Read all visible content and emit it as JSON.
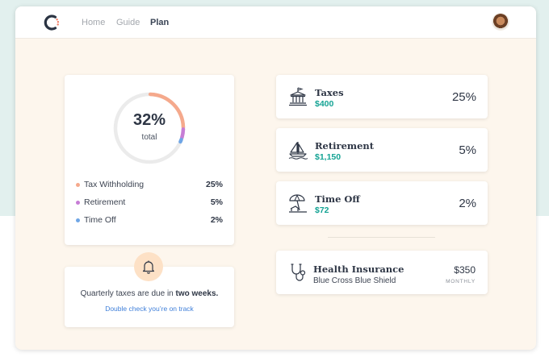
{
  "nav": {
    "links": [
      {
        "label": "Home",
        "active": false
      },
      {
        "label": "Guide",
        "active": false
      },
      {
        "label": "Plan",
        "active": true
      }
    ],
    "logo_icon": "brand-ring-logo",
    "avatar_icon": "user-avatar"
  },
  "summary": {
    "total_value": "32%",
    "total_label": "total",
    "legend": [
      {
        "label": "Tax Withholding",
        "pct": "25%",
        "color": "#f5a98c",
        "value": 25
      },
      {
        "label": "Retirement",
        "pct": "5%",
        "color": "#c77dd6",
        "value": 5
      },
      {
        "label": "Time Off",
        "pct": "2%",
        "color": "#6fa6e6",
        "value": 2
      }
    ],
    "track_color": "#ebebeb"
  },
  "notice": {
    "text_prefix": "Quarterly taxes are due in ",
    "text_bold": "two weeks.",
    "link": "Double check you’re on track",
    "icon": "bell-icon"
  },
  "categories": [
    {
      "title": "Taxes",
      "amount": "$400",
      "pct": "25%",
      "icon": "courthouse-icon"
    },
    {
      "title": "Retirement",
      "amount": "$1,150",
      "pct": "5%",
      "icon": "sailboat-icon"
    },
    {
      "title": "Time Off",
      "amount": "$72",
      "pct": "2%",
      "icon": "beach-umbrella-icon"
    }
  ],
  "insurance": {
    "title": "Health Insurance",
    "subtitle": "Blue Cross Blue Shield",
    "price": "$350",
    "period": "MONTHLY",
    "icon": "stethoscope-icon"
  },
  "colors": {
    "accent_green": "#14a394",
    "link_blue": "#3f7fd9",
    "page_bg": "#fdf6ed",
    "backdrop": "#e2f0ee"
  }
}
